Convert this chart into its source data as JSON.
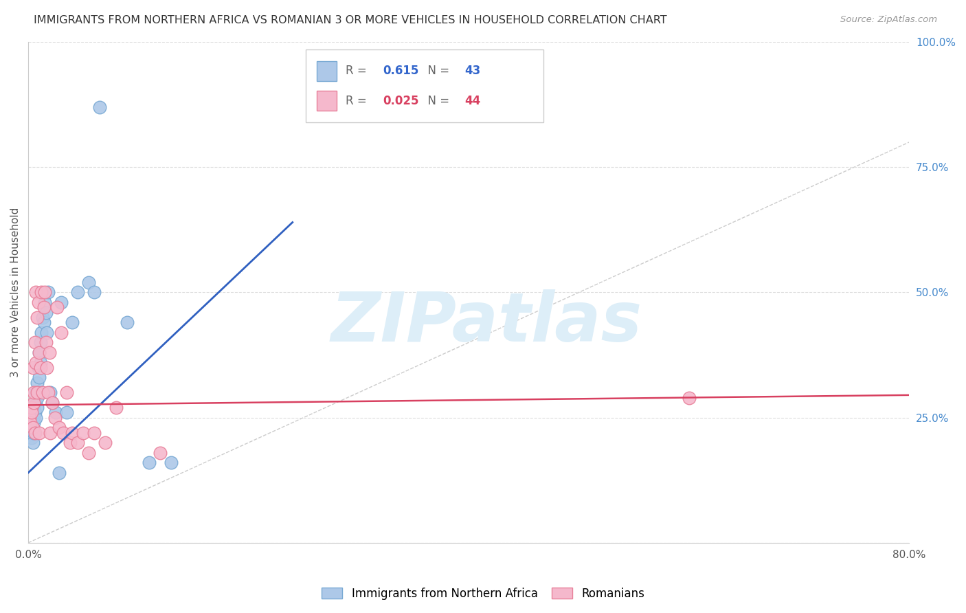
{
  "title": "IMMIGRANTS FROM NORTHERN AFRICA VS ROMANIAN 3 OR MORE VEHICLES IN HOUSEHOLD CORRELATION CHART",
  "source": "Source: ZipAtlas.com",
  "ylabel": "3 or more Vehicles in Household",
  "xlim": [
    0.0,
    0.8
  ],
  "ylim": [
    0.0,
    1.0
  ],
  "xticks": [
    0.0,
    0.1,
    0.2,
    0.3,
    0.4,
    0.5,
    0.6,
    0.7,
    0.8
  ],
  "xticklabels": [
    "0.0%",
    "",
    "",
    "",
    "",
    "",
    "",
    "",
    "80.0%"
  ],
  "yticks": [
    0.0,
    0.25,
    0.5,
    0.75,
    1.0
  ],
  "yticklabels": [
    "",
    "25.0%",
    "50.0%",
    "75.0%",
    "100.0%"
  ],
  "series1_color": "#adc8e8",
  "series1_edgecolor": "#7aaad4",
  "series2_color": "#f5b8cc",
  "series2_edgecolor": "#e8809a",
  "series1_label": "Immigrants from Northern Africa",
  "series2_label": "Romanians",
  "series1_R": "0.615",
  "series1_N": "43",
  "series2_R": "0.025",
  "series2_N": "44",
  "trendline1_color": "#3060c0",
  "trendline2_color": "#d84060",
  "watermark_color": "#ddeef8",
  "series1_x": [
    0.001,
    0.002,
    0.003,
    0.003,
    0.004,
    0.004,
    0.005,
    0.005,
    0.005,
    0.006,
    0.006,
    0.007,
    0.007,
    0.008,
    0.008,
    0.008,
    0.009,
    0.009,
    0.01,
    0.01,
    0.011,
    0.011,
    0.012,
    0.013,
    0.014,
    0.015,
    0.016,
    0.017,
    0.018,
    0.02,
    0.022,
    0.025,
    0.028,
    0.03,
    0.035,
    0.04,
    0.045,
    0.055,
    0.06,
    0.065,
    0.09,
    0.11,
    0.13
  ],
  "series1_y": [
    0.23,
    0.22,
    0.21,
    0.24,
    0.2,
    0.23,
    0.22,
    0.25,
    0.24,
    0.26,
    0.28,
    0.25,
    0.3,
    0.27,
    0.29,
    0.32,
    0.3,
    0.35,
    0.33,
    0.38,
    0.36,
    0.4,
    0.42,
    0.45,
    0.44,
    0.48,
    0.46,
    0.42,
    0.5,
    0.3,
    0.28,
    0.26,
    0.14,
    0.48,
    0.26,
    0.44,
    0.5,
    0.52,
    0.5,
    0.87,
    0.44,
    0.16,
    0.16
  ],
  "series2_x": [
    0.001,
    0.002,
    0.003,
    0.003,
    0.004,
    0.004,
    0.005,
    0.005,
    0.006,
    0.006,
    0.007,
    0.007,
    0.008,
    0.008,
    0.009,
    0.01,
    0.01,
    0.011,
    0.012,
    0.013,
    0.014,
    0.015,
    0.016,
    0.017,
    0.018,
    0.019,
    0.02,
    0.022,
    0.024,
    0.026,
    0.028,
    0.03,
    0.032,
    0.035,
    0.038,
    0.04,
    0.045,
    0.05,
    0.055,
    0.06,
    0.07,
    0.08,
    0.12,
    0.6
  ],
  "series2_y": [
    0.25,
    0.24,
    0.27,
    0.26,
    0.23,
    0.35,
    0.28,
    0.3,
    0.22,
    0.4,
    0.36,
    0.5,
    0.3,
    0.45,
    0.48,
    0.22,
    0.38,
    0.35,
    0.5,
    0.3,
    0.47,
    0.5,
    0.4,
    0.35,
    0.3,
    0.38,
    0.22,
    0.28,
    0.25,
    0.47,
    0.23,
    0.42,
    0.22,
    0.3,
    0.2,
    0.22,
    0.2,
    0.22,
    0.18,
    0.22,
    0.2,
    0.27,
    0.18,
    0.29
  ],
  "trendline1_x": [
    0.0,
    0.24
  ],
  "trendline1_y": [
    0.14,
    0.64
  ],
  "trendline2_x": [
    0.0,
    0.8
  ],
  "trendline2_y": [
    0.275,
    0.295
  ],
  "refline_x": [
    0.0,
    1.0
  ],
  "refline_y": [
    0.0,
    1.0
  ],
  "figsize": [
    14.06,
    8.92
  ],
  "dpi": 100
}
